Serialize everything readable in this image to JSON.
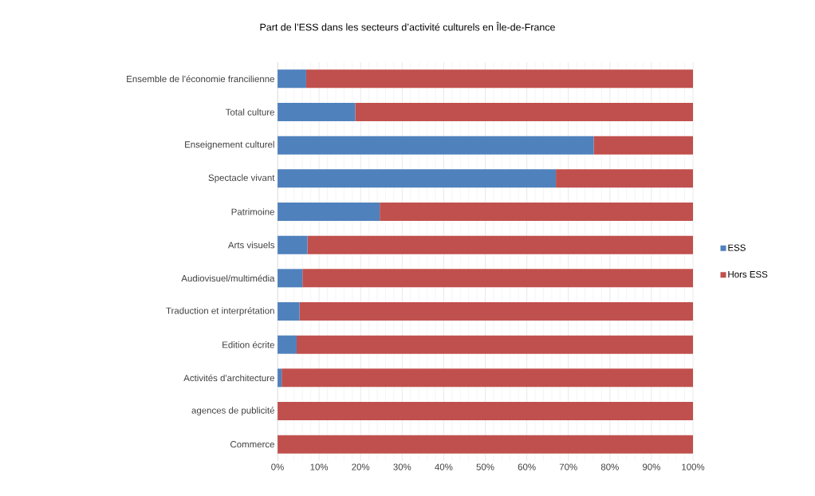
{
  "chart_data": {
    "type": "bar",
    "orientation": "horizontal",
    "stacked": true,
    "title": "Part de l’ESS dans les secteurs d’activité culturels en Île-de-France",
    "categories": [
      "Ensemble de l'économie francilienne",
      "Total culture",
      "Enseignement culturel",
      "Spectacle vivant",
      "Patrimoine",
      "Arts visuels",
      "Audiovisuel/multimédia",
      "Traduction et interprétation",
      "Edition écrite",
      "Activités d'architecture",
      "agences de publicité",
      "Commerce"
    ],
    "series": [
      {
        "name": "ESS",
        "color": "#4f81bd",
        "values": [
          6.9,
          18.7,
          76.1,
          67.0,
          24.6,
          7.2,
          6.0,
          5.3,
          4.6,
          1.0,
          0,
          0
        ]
      },
      {
        "name": "Hors ESS",
        "color": "#c0504d",
        "values": [
          93.1,
          81.3,
          23.9,
          33.0,
          75.4,
          92.8,
          94.0,
          94.7,
          95.4,
          99.0,
          100,
          100
        ]
      }
    ],
    "xlim": [
      0,
      100
    ],
    "xticks": [
      {
        "value": 0,
        "label": "0%"
      },
      {
        "value": 10,
        "label": "10%"
      },
      {
        "value": 20,
        "label": "20%"
      },
      {
        "value": 30,
        "label": "30%"
      },
      {
        "value": 40,
        "label": "40%"
      },
      {
        "value": 50,
        "label": "50%"
      },
      {
        "value": 60,
        "label": "60%"
      },
      {
        "value": 70,
        "label": "70%"
      },
      {
        "value": 80,
        "label": "80%"
      },
      {
        "value": 90,
        "label": "90%"
      },
      {
        "value": 100,
        "label": "100%"
      }
    ],
    "grid": "x",
    "legend": "right"
  }
}
